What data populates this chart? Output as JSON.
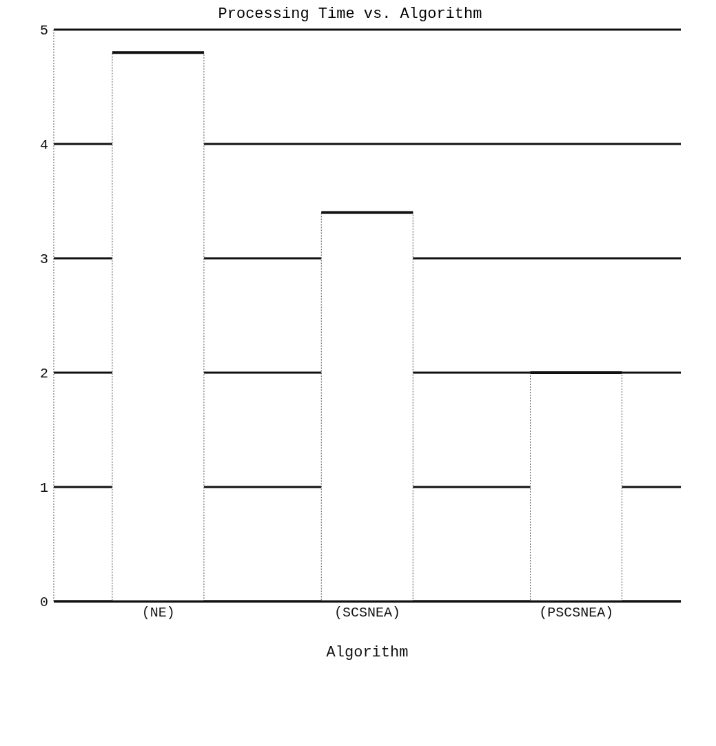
{
  "chart_data": {
    "type": "bar",
    "title": "Processing Time vs. Algorithm",
    "xlabel": "Algorithm",
    "categories": [
      "(NE)",
      "(SCSNEA)",
      "(PSCSNEA)"
    ],
    "values": [
      4.8,
      3.4,
      2.0
    ],
    "color": "#ffffff",
    "ylim": [
      0,
      5
    ],
    "yticks": [
      0,
      1,
      2,
      3,
      4,
      5
    ],
    "grid": "y"
  }
}
